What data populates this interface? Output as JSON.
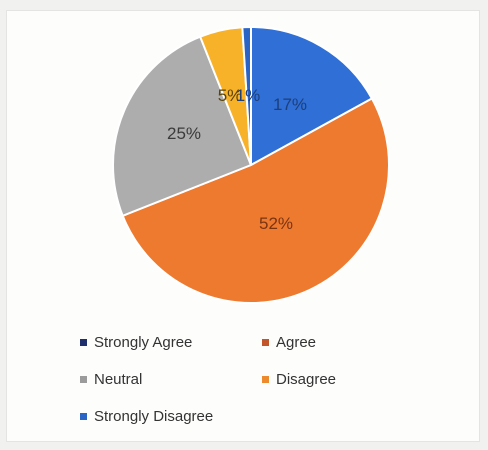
{
  "chart_data": {
    "type": "pie",
    "title": "",
    "slices": [
      {
        "label": "Strongly Agree",
        "value": 17,
        "display": "17%",
        "color": "#2f6fd6",
        "label_color": "#1d3f7a"
      },
      {
        "label": "Agree",
        "value": 52,
        "display": "52%",
        "color": "#ee7a2f",
        "label_color": "#7a3412"
      },
      {
        "label": "Neutral",
        "value": 25,
        "display": "25%",
        "color": "#adadad",
        "label_color": "#3a3a3a"
      },
      {
        "label": "Disagree",
        "value": 5,
        "display": "5%",
        "color": "#f7b22a",
        "label_color": "#5a4208"
      },
      {
        "label": "Strongly Disagree",
        "value": 1,
        "display": "1%",
        "color": "#2a64c4",
        "label_color": "#1d3f7a"
      }
    ],
    "legend_position": "bottom",
    "legend_swatch_colors": {
      "Strongly Agree": "#1f2f6b",
      "Agree": "#c2552a",
      "Neutral": "#9b9b9b",
      "Disagree": "#ee8a2e",
      "Strongly Disagree": "#2a64c4"
    }
  }
}
